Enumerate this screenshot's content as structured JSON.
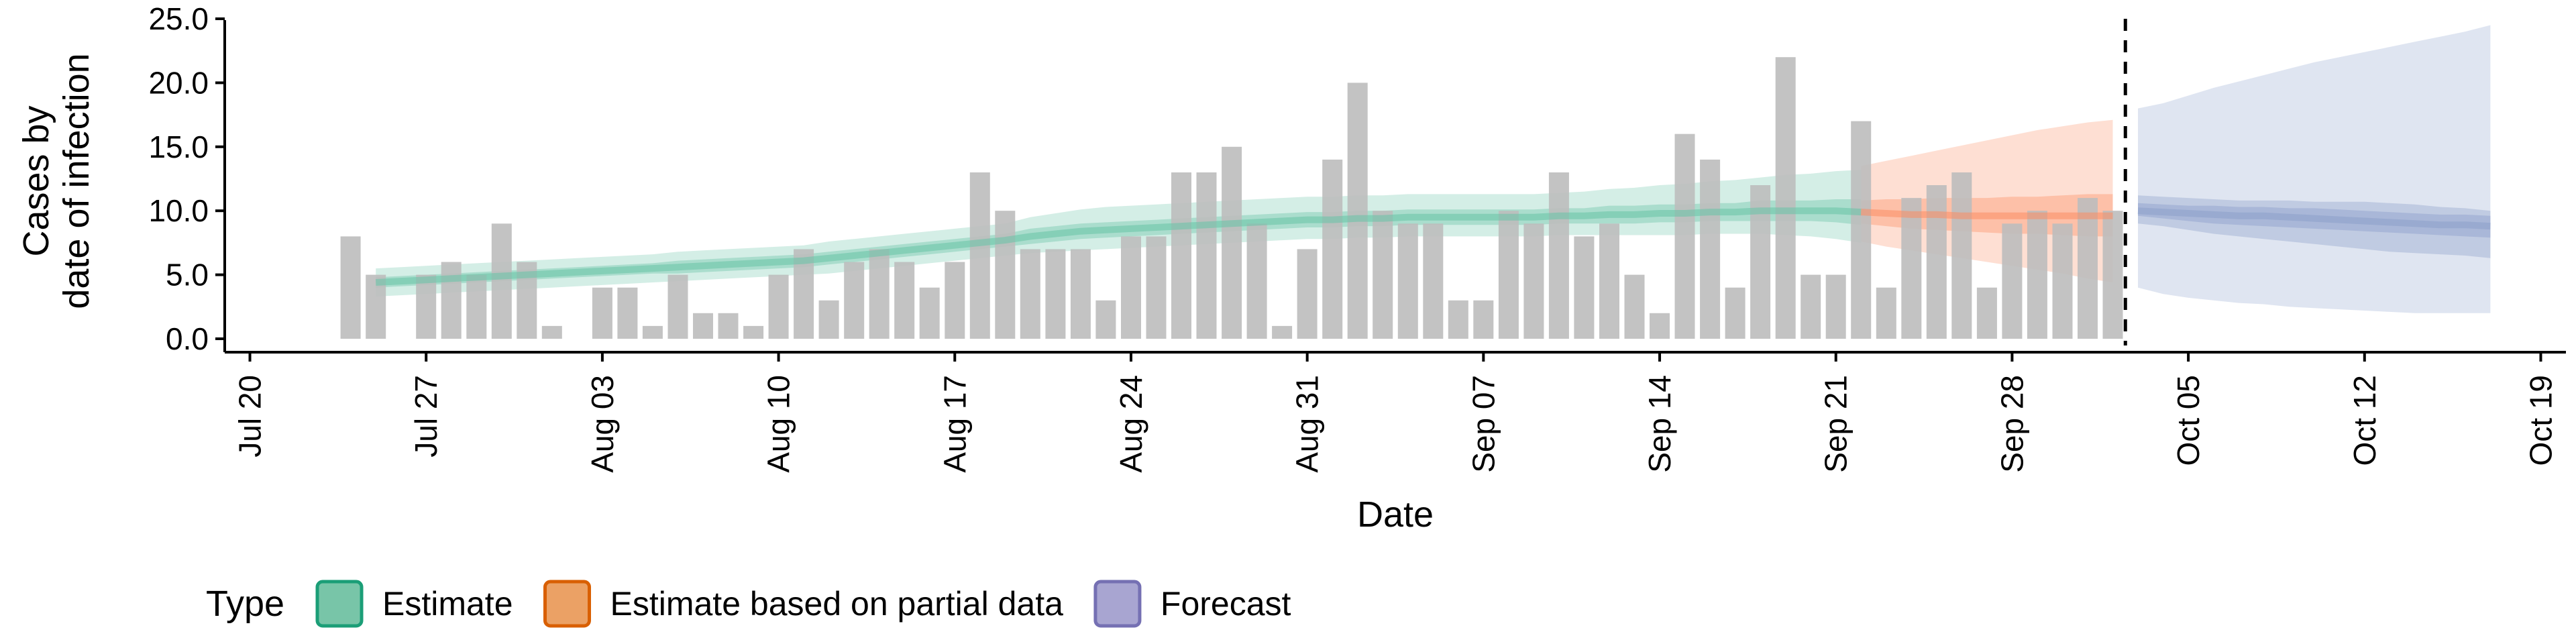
{
  "chart_data": {
    "type": "bar",
    "xlabel": "Date",
    "ylabel": [
      "Cases by",
      "date of infection"
    ],
    "ylim": [
      0,
      25
    ],
    "yticks": [
      0,
      5,
      10,
      15,
      20,
      25
    ],
    "ytick_labels": [
      "0.0",
      "5.0",
      "10.0",
      "15.0",
      "20.0",
      "25.0"
    ],
    "xdomain": [
      "2020-07-19",
      "2020-10-20"
    ],
    "xticks": [
      "2020-07-20",
      "2020-07-27",
      "2020-08-03",
      "2020-08-10",
      "2020-08-17",
      "2020-08-24",
      "2020-08-31",
      "2020-09-07",
      "2020-09-14",
      "2020-09-21",
      "2020-09-28",
      "2020-10-05",
      "2020-10-12",
      "2020-10-19"
    ],
    "xtick_labels": [
      "Jul 20",
      "Jul 27",
      "Aug 03",
      "Aug 10",
      "Aug 17",
      "Aug 24",
      "Aug 31",
      "Sep 07",
      "Sep 14",
      "Sep 21",
      "Sep 28",
      "Oct 05",
      "Oct 12",
      "Oct 19"
    ],
    "bars": {
      "start_date": "2020-07-24",
      "values": [
        8,
        5,
        0,
        5,
        6,
        5,
        9,
        6,
        1,
        0,
        4,
        4,
        1,
        5,
        2,
        2,
        1,
        5,
        7,
        3,
        6,
        7,
        6,
        4,
        6,
        13,
        10,
        7,
        7,
        7,
        3,
        8,
        8,
        13,
        13,
        15,
        9,
        1,
        7,
        14,
        20,
        10,
        9,
        9,
        3,
        3,
        10,
        9,
        13,
        8,
        9,
        5,
        2,
        16,
        14,
        4,
        12,
        22,
        5,
        5,
        17,
        4,
        11,
        12,
        13,
        4,
        9,
        10,
        9,
        11,
        10
      ],
      "color": "#bdbdbd"
    },
    "vline_date": "2020-10-02",
    "series": [
      {
        "name": "Estimate",
        "color": "#1b9e77",
        "fill": "#66c2a5",
        "start_date": "2020-07-25",
        "median": [
          4.4,
          4.5,
          4.6,
          4.7,
          4.8,
          4.9,
          5.0,
          5.1,
          5.2,
          5.3,
          5.4,
          5.5,
          5.6,
          5.7,
          5.8,
          5.9,
          6.0,
          6.1,
          6.3,
          6.5,
          6.7,
          6.9,
          7.1,
          7.3,
          7.5,
          7.7,
          8.0,
          8.2,
          8.4,
          8.5,
          8.6,
          8.7,
          8.8,
          8.9,
          9.0,
          9.1,
          9.2,
          9.3,
          9.3,
          9.4,
          9.4,
          9.5,
          9.5,
          9.5,
          9.5,
          9.5,
          9.5,
          9.6,
          9.6,
          9.7,
          9.7,
          9.8,
          9.8,
          9.9,
          9.9,
          10.0,
          10.0,
          10.0,
          10.0,
          9.9
        ],
        "lower50": [
          4.0,
          4.1,
          4.2,
          4.3,
          4.4,
          4.5,
          4.6,
          4.7,
          4.8,
          4.9,
          5.0,
          5.1,
          5.1,
          5.2,
          5.3,
          5.4,
          5.5,
          5.6,
          5.8,
          6.0,
          6.2,
          6.4,
          6.6,
          6.8,
          7.0,
          7.2,
          7.4,
          7.6,
          7.8,
          7.9,
          8.0,
          8.1,
          8.2,
          8.3,
          8.4,
          8.5,
          8.6,
          8.7,
          8.7,
          8.8,
          8.8,
          8.9,
          8.9,
          8.9,
          8.9,
          8.9,
          8.9,
          9.0,
          9.0,
          9.0,
          9.0,
          9.1,
          9.1,
          9.2,
          9.2,
          9.2,
          9.2,
          9.2,
          9.1,
          8.9
        ],
        "upper50": [
          4.8,
          4.9,
          5.0,
          5.1,
          5.2,
          5.3,
          5.4,
          5.5,
          5.6,
          5.7,
          5.8,
          5.9,
          6.1,
          6.2,
          6.3,
          6.4,
          6.5,
          6.6,
          6.8,
          7.0,
          7.2,
          7.4,
          7.6,
          7.8,
          8.0,
          8.2,
          8.6,
          8.8,
          9.0,
          9.1,
          9.2,
          9.3,
          9.4,
          9.5,
          9.6,
          9.7,
          9.8,
          9.9,
          9.9,
          10.0,
          10.0,
          10.1,
          10.1,
          10.1,
          10.1,
          10.1,
          10.1,
          10.2,
          10.2,
          10.4,
          10.4,
          10.5,
          10.5,
          10.6,
          10.6,
          10.8,
          10.8,
          10.8,
          10.9,
          10.9
        ],
        "lower90": [
          3.3,
          3.4,
          3.5,
          3.6,
          3.7,
          3.8,
          3.9,
          4.0,
          4.1,
          4.2,
          4.3,
          4.4,
          4.5,
          4.6,
          4.7,
          4.8,
          4.9,
          5.0,
          5.1,
          5.3,
          5.5,
          5.7,
          5.9,
          6.1,
          6.3,
          6.5,
          6.7,
          6.8,
          6.9,
          7.0,
          7.1,
          7.2,
          7.3,
          7.4,
          7.5,
          7.6,
          7.7,
          7.8,
          7.8,
          7.9,
          7.9,
          8.0,
          8.0,
          8.0,
          8.0,
          8.0,
          8.0,
          8.1,
          8.1,
          8.1,
          8.1,
          8.1,
          8.1,
          8.2,
          8.2,
          8.2,
          8.1,
          8.0,
          7.8,
          7.5
        ],
        "upper90": [
          5.5,
          5.6,
          5.7,
          5.8,
          5.9,
          6.0,
          6.1,
          6.2,
          6.3,
          6.4,
          6.5,
          6.6,
          6.8,
          6.9,
          7.0,
          7.1,
          7.2,
          7.3,
          7.6,
          7.8,
          8.0,
          8.2,
          8.4,
          8.6,
          8.8,
          9.0,
          9.5,
          9.8,
          10.1,
          10.3,
          10.4,
          10.5,
          10.6,
          10.7,
          10.8,
          10.9,
          11.0,
          11.1,
          11.1,
          11.2,
          11.2,
          11.3,
          11.3,
          11.3,
          11.3,
          11.3,
          11.3,
          11.4,
          11.5,
          11.7,
          11.8,
          12.0,
          12.1,
          12.3,
          12.4,
          12.6,
          12.8,
          12.9,
          13.1,
          13.2
        ]
      },
      {
        "name": "Estimate based on partial data",
        "color": "#d95f02",
        "fill": "#fc8d62",
        "start_date": "2020-09-22",
        "median": [
          9.9,
          9.8,
          9.7,
          9.7,
          9.6,
          9.6,
          9.6,
          9.6,
          9.6,
          9.6,
          9.6
        ],
        "lower50": [
          9.0,
          8.8,
          8.6,
          8.5,
          8.4,
          8.3,
          8.2,
          8.2,
          8.1,
          8.0,
          8.0
        ],
        "upper50": [
          10.8,
          10.9,
          10.9,
          11.0,
          11.0,
          11.0,
          11.1,
          11.1,
          11.2,
          11.3,
          11.3
        ],
        "lower90": [
          7.6,
          7.2,
          6.9,
          6.6,
          6.3,
          6.0,
          5.7,
          5.4,
          5.1,
          4.7,
          4.4
        ],
        "upper90": [
          13.5,
          13.9,
          14.3,
          14.7,
          15.1,
          15.5,
          15.9,
          16.3,
          16.6,
          16.9,
          17.1
        ]
      },
      {
        "name": "Forecast",
        "color": "#7570b3",
        "fill": "#8da0cb",
        "start_date": "2020-10-03",
        "median": [
          10.0,
          9.9,
          9.8,
          9.7,
          9.6,
          9.6,
          9.5,
          9.4,
          9.3,
          9.2,
          9.1,
          9.0,
          8.9,
          8.9,
          8.8
        ],
        "lower50": [
          9.0,
          8.8,
          8.5,
          8.2,
          8.0,
          7.8,
          7.6,
          7.4,
          7.2,
          7.0,
          6.8,
          6.7,
          6.6,
          6.5,
          6.3
        ],
        "upper50": [
          11.2,
          11.1,
          11.0,
          10.9,
          10.8,
          10.8,
          10.8,
          10.7,
          10.7,
          10.7,
          10.6,
          10.5,
          10.3,
          10.2,
          10.0
        ],
        "lower30": [
          9.6,
          9.4,
          9.2,
          9.0,
          8.9,
          8.8,
          8.7,
          8.6,
          8.5,
          8.4,
          8.3,
          8.2,
          8.1,
          8.0,
          7.9
        ],
        "upper30": [
          10.6,
          10.5,
          10.4,
          10.4,
          10.3,
          10.3,
          10.2,
          10.2,
          10.1,
          10.0,
          9.9,
          9.8,
          9.7,
          9.7,
          9.6
        ],
        "lower90": [
          4.0,
          3.5,
          3.2,
          3.0,
          2.8,
          2.7,
          2.5,
          2.4,
          2.3,
          2.2,
          2.1,
          2.0,
          2.0,
          2.0,
          2.0
        ],
        "upper90": [
          18.0,
          18.4,
          19.0,
          19.6,
          20.1,
          20.6,
          21.1,
          21.6,
          22.0,
          22.4,
          22.8,
          23.2,
          23.6,
          24.0,
          24.5
        ]
      }
    ],
    "legend": {
      "title": "Type",
      "position": "bottom-left",
      "items": [
        {
          "label": "Estimate",
          "fill": "#78c5a8",
          "stroke": "#1b9e77"
        },
        {
          "label": "Estimate based on partial data",
          "fill": "#eba165",
          "stroke": "#d95f02"
        },
        {
          "label": "Forecast",
          "fill": "#a8a5d1",
          "stroke": "#7570b3"
        }
      ]
    },
    "grid": false
  }
}
